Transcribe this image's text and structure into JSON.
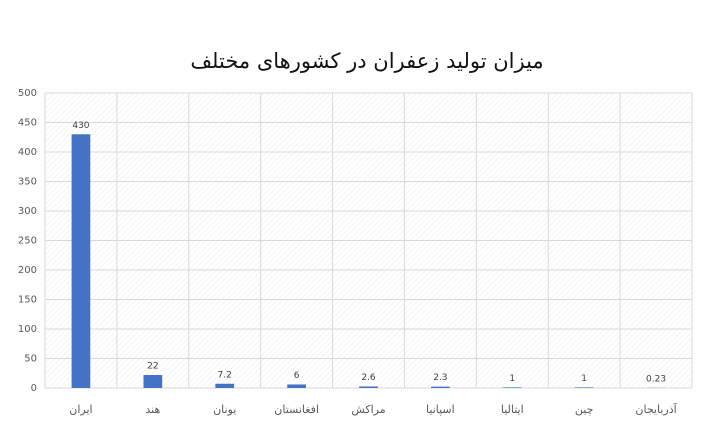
{
  "chart_data": {
    "type": "bar",
    "title": "میزان تولید زعفران در کشورهای مختلف",
    "categories": [
      "ایران",
      "هند",
      "یونان",
      "افغانستان",
      "مراکش",
      "اسپانیا",
      "ایتالیا",
      "چین",
      "آذربایجان"
    ],
    "values": [
      430,
      22,
      7.2,
      6,
      2.6,
      2.3,
      1,
      1,
      0.23
    ],
    "color": "#4472c4",
    "ylim": [
      0,
      500
    ],
    "yticks": [
      0,
      50,
      100,
      150,
      200,
      250,
      300,
      350,
      400,
      450,
      500
    ],
    "grid": true
  }
}
